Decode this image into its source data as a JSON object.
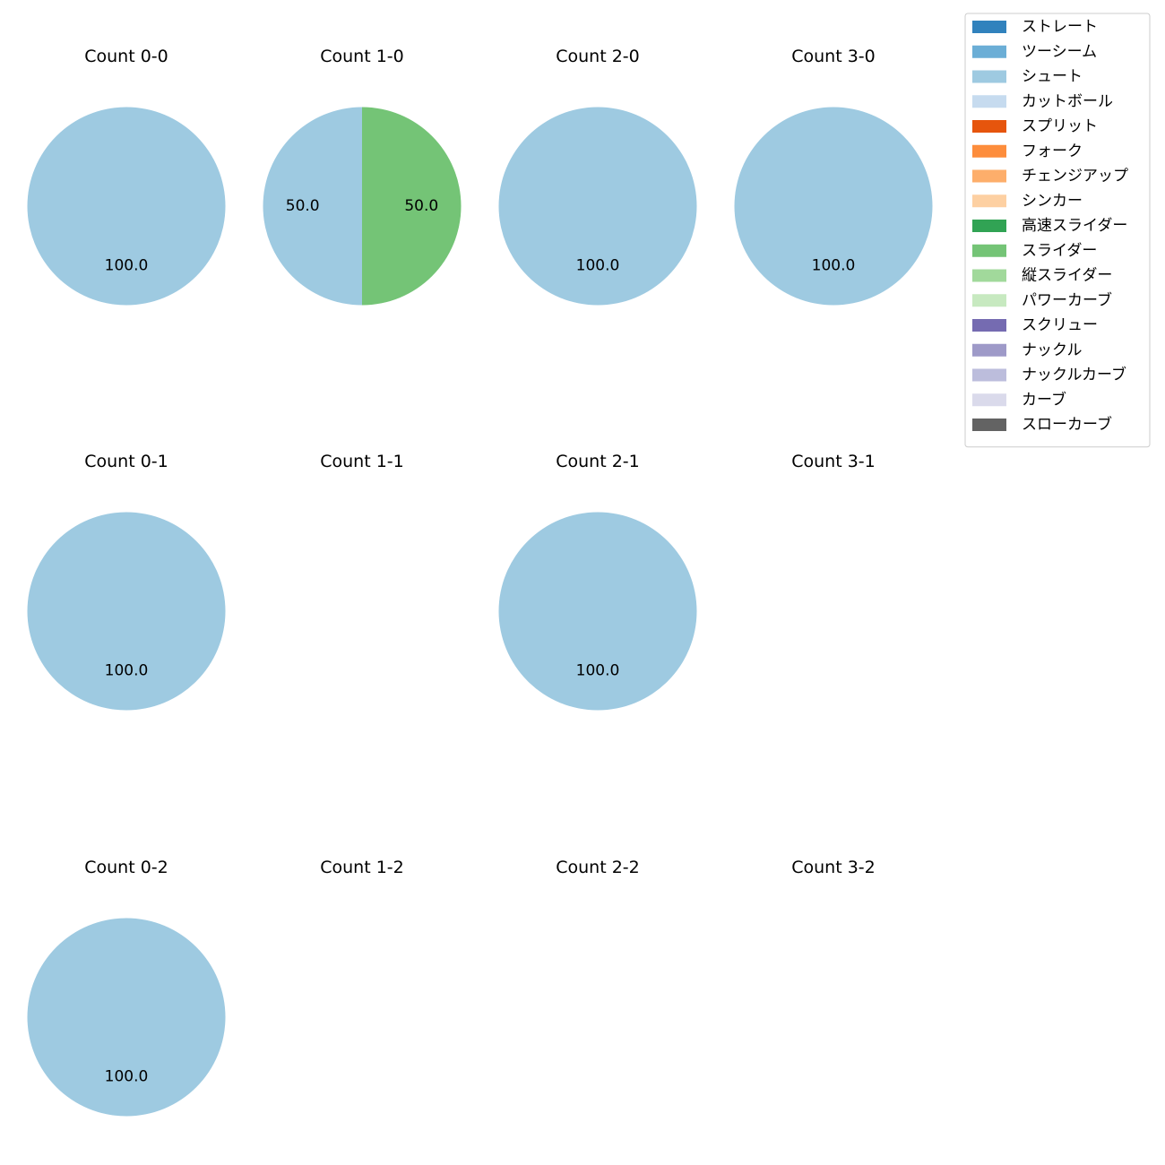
{
  "chart_data": {
    "type": "pie",
    "subplot_grid": {
      "rows": 3,
      "cols": 4
    },
    "legend": {
      "placement": "top-right",
      "entries": [
        {
          "name": "ストレート",
          "color": "#3182bd"
        },
        {
          "name": "ツーシーム",
          "color": "#6baed6"
        },
        {
          "name": "シュート",
          "color": "#9ecae1"
        },
        {
          "name": "カットボール",
          "color": "#c6dbef"
        },
        {
          "name": "スプリット",
          "color": "#e6550d"
        },
        {
          "name": "フォーク",
          "color": "#fd8d3c"
        },
        {
          "name": "チェンジアップ",
          "color": "#fdae6b"
        },
        {
          "name": "シンカー",
          "color": "#fdd0a2"
        },
        {
          "name": "高速スライダー",
          "color": "#31a354"
        },
        {
          "name": "スライダー",
          "color": "#74c476"
        },
        {
          "name": "縦スライダー",
          "color": "#a1d99b"
        },
        {
          "name": "パワーカーブ",
          "color": "#c7e9c0"
        },
        {
          "name": "スクリュー",
          "color": "#756bb1"
        },
        {
          "name": "ナックル",
          "color": "#9e9ac8"
        },
        {
          "name": "ナックルカーブ",
          "color": "#bcbddc"
        },
        {
          "name": "カーブ",
          "color": "#dadaeb"
        },
        {
          "name": "スローカーブ",
          "color": "#636363"
        }
      ]
    },
    "charts": [
      {
        "title": "Count 0-0",
        "slices": [
          {
            "name": "シュート",
            "value": 100.0,
            "label": "100.0"
          }
        ]
      },
      {
        "title": "Count 1-0",
        "slices": [
          {
            "name": "シュート",
            "value": 50.0,
            "label": "50.0"
          },
          {
            "name": "スライダー",
            "value": 50.0,
            "label": "50.0"
          }
        ]
      },
      {
        "title": "Count 2-0",
        "slices": [
          {
            "name": "シュート",
            "value": 100.0,
            "label": "100.0"
          }
        ]
      },
      {
        "title": "Count 3-0",
        "slices": [
          {
            "name": "シュート",
            "value": 100.0,
            "label": "100.0"
          }
        ]
      },
      {
        "title": "Count 0-1",
        "slices": [
          {
            "name": "シュート",
            "value": 100.0,
            "label": "100.0"
          }
        ]
      },
      {
        "title": "Count 1-1",
        "slices": []
      },
      {
        "title": "Count 2-1",
        "slices": [
          {
            "name": "シュート",
            "value": 100.0,
            "label": "100.0"
          }
        ]
      },
      {
        "title": "Count 3-1",
        "slices": []
      },
      {
        "title": "Count 0-2",
        "slices": [
          {
            "name": "シュート",
            "value": 100.0,
            "label": "100.0"
          }
        ]
      },
      {
        "title": "Count 1-2",
        "slices": []
      },
      {
        "title": "Count 2-2",
        "slices": []
      },
      {
        "title": "Count 3-2",
        "slices": []
      }
    ]
  }
}
